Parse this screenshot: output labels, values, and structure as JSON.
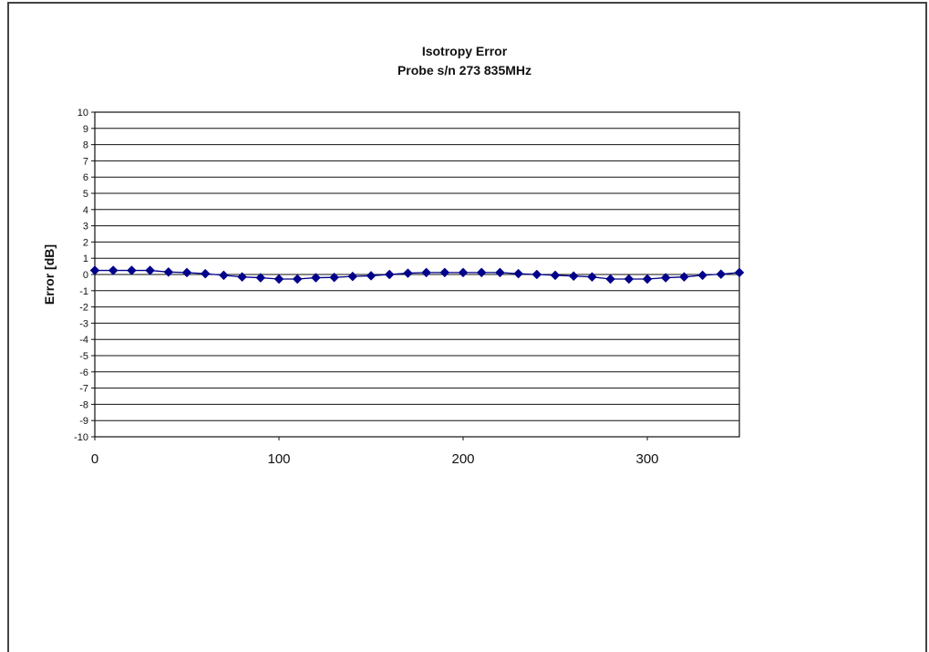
{
  "chart_data": {
    "type": "line",
    "title": "Isotropy Error",
    "subtitle": "Probe s/n 273 835MHz",
    "xlabel": "",
    "ylabel": "Error [dB]",
    "xlim": [
      0,
      350
    ],
    "ylim": [
      -10,
      10
    ],
    "x_ticks": [
      "0",
      "100",
      "200",
      "300"
    ],
    "x_tick_values": [
      0,
      100,
      200,
      300
    ],
    "y_ticks": [
      "10",
      "9",
      "8",
      "7",
      "6",
      "5",
      "4",
      "3",
      "2",
      "1",
      "0",
      "-1",
      "-2",
      "-3",
      "-4",
      "-5",
      "-6",
      "-7",
      "-8",
      "-9",
      "-10"
    ],
    "y_tick_values": [
      10,
      9,
      8,
      7,
      6,
      5,
      4,
      3,
      2,
      1,
      0,
      -1,
      -2,
      -3,
      -4,
      -5,
      -6,
      -7,
      -8,
      -9,
      -10
    ],
    "grid": true,
    "series": [
      {
        "color": "#00008b",
        "marker": "diamond",
        "x": [
          0,
          10,
          20,
          30,
          40,
          50,
          60,
          70,
          80,
          90,
          100,
          110,
          120,
          130,
          140,
          150,
          160,
          170,
          180,
          190,
          200,
          210,
          220,
          230,
          240,
          250,
          260,
          270,
          280,
          290,
          300,
          310,
          320,
          330,
          340,
          350
        ],
        "values": [
          0.25,
          0.25,
          0.25,
          0.25,
          0.15,
          0.12,
          0.05,
          -0.05,
          -0.15,
          -0.2,
          -0.28,
          -0.28,
          -0.2,
          -0.18,
          -0.12,
          -0.08,
          0.0,
          0.08,
          0.12,
          0.12,
          0.12,
          0.12,
          0.12,
          0.05,
          0.0,
          -0.05,
          -0.1,
          -0.15,
          -0.28,
          -0.28,
          -0.28,
          -0.2,
          -0.15,
          -0.05,
          0.02,
          0.12
        ]
      }
    ]
  }
}
